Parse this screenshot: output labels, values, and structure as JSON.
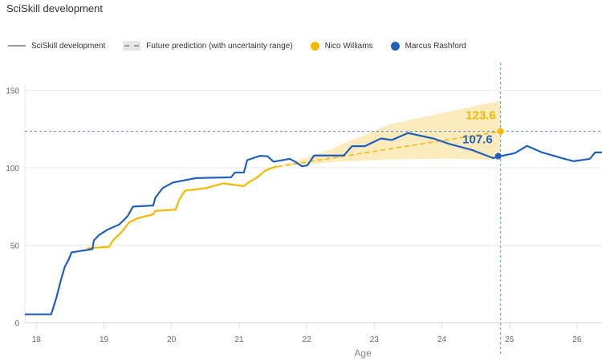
{
  "title": "SciSkill development",
  "legend": {
    "development": "SciSkill development",
    "prediction": "Future prediction (with uncertainty range)",
    "players": [
      "Nico Williams",
      "Marcus Rashford"
    ]
  },
  "colors": {
    "nico": "#F5B800",
    "marcus": "#1F5FBF",
    "band": "#FBE8B0",
    "grid": "#e8e8e8",
    "crosshair": "#4A8BD6"
  },
  "chart_data": {
    "type": "line",
    "title": "SciSkill development",
    "xlabel": "Age",
    "ylabel": "",
    "xlim": [
      17.83,
      26.37
    ],
    "ylim": [
      0,
      168
    ],
    "xticks": [
      "18",
      "19",
      "20",
      "21",
      "22",
      "23",
      "24",
      "25",
      "26"
    ],
    "yticks": [
      "0",
      "50",
      "100",
      "150"
    ],
    "grid": "horizontal",
    "legend_position": "top",
    "series": [
      {
        "name": "Marcus Rashford",
        "x": [
          17.83,
          18.22,
          18.3,
          18.36,
          18.42,
          18.48,
          18.52,
          18.83,
          18.85,
          18.93,
          19.05,
          19.23,
          19.35,
          19.43,
          19.73,
          19.76,
          19.87,
          20.02,
          20.36,
          20.88,
          20.94,
          21.07,
          21.12,
          21.31,
          21.42,
          21.51,
          21.75,
          21.83,
          21.93,
          22.01,
          22.11,
          22.55,
          22.67,
          22.86,
          23.1,
          23.26,
          23.42,
          23.5,
          23.89,
          24.1,
          24.45,
          24.76,
          24.87,
          25.08,
          25.26,
          25.48,
          25.8,
          25.95,
          26.19,
          26.27,
          26.37
        ],
        "y": [
          5.4,
          5.4,
          16.7,
          27,
          36,
          41,
          45.4,
          47.5,
          53,
          56.7,
          60,
          63.5,
          68.8,
          75,
          75.7,
          80.7,
          87,
          90.5,
          93.4,
          93.9,
          97,
          97,
          105,
          107.8,
          107.5,
          104,
          105.8,
          104,
          101,
          101.6,
          108,
          108,
          114,
          114,
          119,
          118,
          121,
          122.5,
          118.8,
          115.6,
          111.5,
          106.3,
          107.6,
          109.5,
          114.2,
          110,
          106,
          104.3,
          105.8,
          110,
          110
        ]
      },
      {
        "name": "Nico Williams",
        "x": [
          18.75,
          19.08,
          19.13,
          19.25,
          19.37,
          19.49,
          19.73,
          19.76,
          20.06,
          20.12,
          20.2,
          20.52,
          20.76,
          21.07,
          21.12,
          21.27,
          21.39,
          21.54,
          21.57
        ],
        "y": [
          48,
          49,
          53,
          58,
          64.6,
          67.3,
          70,
          72.2,
          73,
          80,
          85.3,
          87,
          90,
          88.2,
          90,
          94,
          98.3,
          100.8,
          100.8
        ]
      }
    ],
    "prediction": {
      "x": [
        21.57,
        22.23,
        22.4,
        23.22,
        24.05,
        24.87
      ],
      "y": [
        100.8,
        105.4,
        106.5,
        112.2,
        117.9,
        123.6
      ],
      "lower": [
        100.8,
        103,
        103.8,
        105.5,
        106,
        105.2
      ],
      "upper": [
        100.8,
        110,
        113,
        128,
        136,
        143.4
      ]
    },
    "crosshair": {
      "age": 24.87,
      "values": [
        "123.6",
        "107.6"
      ],
      "nico_value": 123.6,
      "marcus_value": 107.6
    }
  }
}
